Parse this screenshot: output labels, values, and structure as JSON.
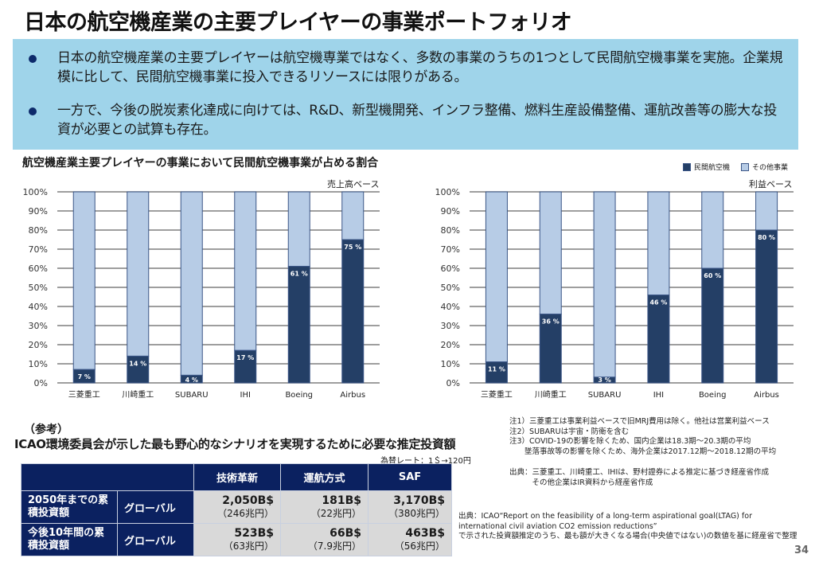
{
  "page": {
    "title": "日本の航空機産業の主要プレイヤーの事業ポートフォリオ",
    "page_number": "34"
  },
  "summary": {
    "bullets": [
      "日本の航空機産業の主要プレイヤーは航空機専業ではなく、多数の事業のうちの1つとして民間航空機事業を実施。企業規模に比して、民間航空機事業に投入できるリソースには限りがある。",
      "一方で、今後の脱炭素化達成に向けては、R&D、新型機開発、インフラ整備、燃料生産設備整備、運航改善等の膨大な投資が必要との試算も存在。"
    ]
  },
  "colors": {
    "civil_aircraft": "#243f66",
    "other_business": "#b7cce6",
    "summary_bg": "#9fd4ea",
    "table_header": "#0b2160",
    "table_cell": "#d9d9d9"
  },
  "chart_section_title": "航空機産業主要プレイヤーの事業において民間航空機事業が占める割合",
  "chart_data": [
    {
      "type": "bar",
      "stacked": true,
      "title": "売上高ベース",
      "categories": [
        "三菱重工",
        "川崎重工",
        "SUBARU",
        "IHI",
        "Boeing",
        "Airbus"
      ],
      "series": [
        {
          "name": "民間航空機",
          "values": [
            7,
            14,
            4,
            17,
            61,
            75
          ]
        },
        {
          "name": "その他事業",
          "values": [
            93,
            86,
            96,
            83,
            39,
            25
          ]
        }
      ],
      "data_labels": [
        "7 %",
        "14 %",
        "4 %",
        "17 %",
        "61 %",
        "75 %"
      ],
      "yticks": [
        "0%",
        "10%",
        "20%",
        "30%",
        "40%",
        "50%",
        "60%",
        "70%",
        "80%",
        "90%",
        "100%"
      ],
      "ylim": [
        0,
        100
      ],
      "xlabel": "",
      "ylabel": "",
      "grid": true
    },
    {
      "type": "bar",
      "stacked": true,
      "title": "利益ベース",
      "categories": [
        "三菱重工",
        "川崎重工",
        "SUBARU",
        "IHI",
        "Boeing",
        "Airbus"
      ],
      "series": [
        {
          "name": "民間航空機",
          "values": [
            11,
            36,
            3,
            46,
            60,
            80
          ]
        },
        {
          "name": "その他事業",
          "values": [
            89,
            64,
            97,
            54,
            40,
            20
          ]
        }
      ],
      "data_labels": [
        "11 %",
        "36 %",
        "3 %",
        "46 %",
        "60 %",
        "80 %"
      ],
      "yticks": [
        "0%",
        "10%",
        "20%",
        "30%",
        "40%",
        "50%",
        "60%",
        "70%",
        "80%",
        "90%",
        "100%"
      ],
      "ylim": [
        0,
        100
      ],
      "xlabel": "",
      "ylabel": "",
      "grid": true,
      "legend": {
        "position": "top-right",
        "entries": [
          "民間航空機",
          "その他事業"
        ]
      }
    }
  ],
  "reference": {
    "label": "（参考）",
    "title": "ICAO環境委員会が示した最も野心的なシナリオを実現するために必要な推定投資額",
    "fx_note": "為替レート：1＄→120円",
    "columns": [
      "技術革新",
      "運航方式",
      "SAF"
    ],
    "rows": [
      {
        "label": "2050年までの累積投資額",
        "scope": "グローバル",
        "values": [
          {
            "usd": "2,050B$",
            "jpy": "（246兆円）"
          },
          {
            "usd": "181B$",
            "jpy": "（22兆円）"
          },
          {
            "usd": "3,170B$",
            "jpy": "（380兆円）"
          }
        ]
      },
      {
        "label": "今後10年間の累積投資額",
        "scope": "グローバル",
        "values": [
          {
            "usd": "523B$",
            "jpy": "（63兆円）"
          },
          {
            "usd": "66B$",
            "jpy": "（7.9兆円）"
          },
          {
            "usd": "463B$",
            "jpy": "（56兆円）"
          }
        ]
      }
    ]
  },
  "notes": [
    "注1）三菱重工は事業利益ベースで旧MRJ費用は除く。他社は営業利益ベース",
    "注2）SUBARUは宇宙・防衛を含む",
    "注3）COVID-19の影響を除くため、国内企業は18.3期～20.3期の平均",
    "　　墜落事故等の影響を除くため、海外企業は2017.12期～2018.12期の平均"
  ],
  "sources": {
    "chart": [
      "出典：三菱重工、川崎重工、IHIは、野村證券による推定に基づき経産省作成",
      "　　　その他企業はIR資料から経産省作成"
    ],
    "table": [
      "出典：ICAO“Report on the feasibility of a long-term aspirational goal(LTAG) for",
      "international civil aviation CO2 emission reductions”",
      "で示された投資額推定のうち、最も額が大きくなる場合(中央値ではない)の数値を基に経産省で整理"
    ]
  }
}
